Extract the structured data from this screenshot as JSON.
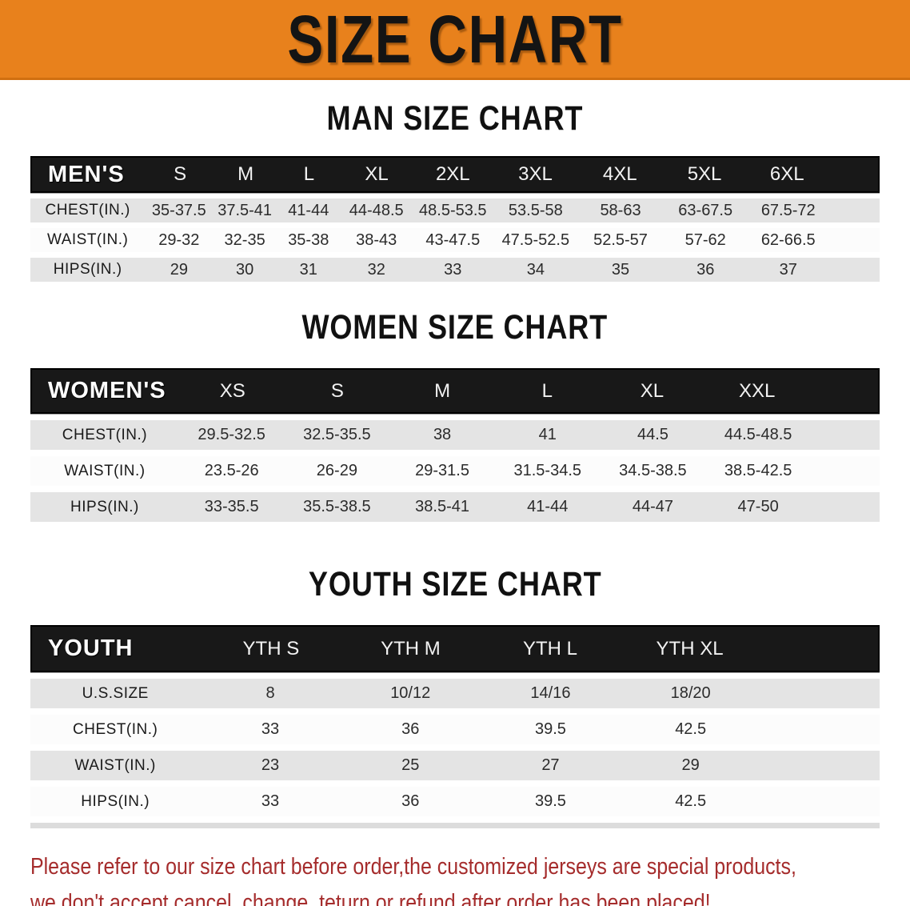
{
  "banner": {
    "title": "SIZE CHART",
    "bg_color": "#E8811C",
    "text_color": "#141414"
  },
  "men": {
    "heading": "MAN SIZE CHART",
    "header_label": "MEN'S",
    "columns": [
      "S",
      "M",
      "L",
      "XL",
      "2XL",
      "3XL",
      "4XL",
      "5XL",
      "6XL"
    ],
    "rows": [
      {
        "label": "CHEST(IN.)",
        "values": [
          "35-37.5",
          "37.5-41",
          "41-44",
          "44-48.5",
          "48.5-53.5",
          "53.5-58",
          "58-63",
          "63-67.5",
          "67.5-72"
        ]
      },
      {
        "label": "WAIST(IN.)",
        "values": [
          "29-32",
          "32-35",
          "35-38",
          "38-43",
          "43-47.5",
          "47.5-52.5",
          "52.5-57",
          "57-62",
          "62-66.5"
        ]
      },
      {
        "label": "HIPS(IN.)",
        "values": [
          "29",
          "30",
          "31",
          "32",
          "33",
          "34",
          "35",
          "36",
          "37"
        ]
      }
    ]
  },
  "women": {
    "heading": "WOMEN SIZE CHART",
    "header_label": "WOMEN'S",
    "columns": [
      "XS",
      "S",
      "M",
      "L",
      "XL",
      "XXL"
    ],
    "rows": [
      {
        "label": "CHEST(IN.)",
        "values": [
          "29.5-32.5",
          "32.5-35.5",
          "38",
          "41",
          "44.5",
          "44.5-48.5"
        ]
      },
      {
        "label": "WAIST(IN.)",
        "values": [
          "23.5-26",
          "26-29",
          "29-31.5",
          "31.5-34.5",
          "34.5-38.5",
          "38.5-42.5"
        ]
      },
      {
        "label": "HIPS(IN.)",
        "values": [
          "33-35.5",
          "35.5-38.5",
          "38.5-41",
          "41-44",
          "44-47",
          "47-50"
        ]
      }
    ]
  },
  "youth": {
    "heading": "YOUTH SIZE CHART",
    "header_label": "YOUTH",
    "columns": [
      "YTH S",
      "YTH M",
      "YTH L",
      "YTH XL"
    ],
    "rows": [
      {
        "label": "U.S.SIZE",
        "values": [
          "8",
          "10/12",
          "14/16",
          "18/20"
        ]
      },
      {
        "label": "CHEST(IN.)",
        "values": [
          "33",
          "36",
          "39.5",
          "42.5"
        ]
      },
      {
        "label": "WAIST(IN.)",
        "values": [
          "23",
          "25",
          "27",
          "29"
        ]
      },
      {
        "label": "HIPS(IN.)",
        "values": [
          "33",
          "36",
          "39.5",
          "42.5"
        ]
      }
    ]
  },
  "footer": {
    "line1": "Please refer to our size chart before order,the customized jerseys are special products,",
    "line2": "we don't accept cancel, change, teturn or refund after order has been placed!",
    "text_color": "#A52C2C"
  }
}
